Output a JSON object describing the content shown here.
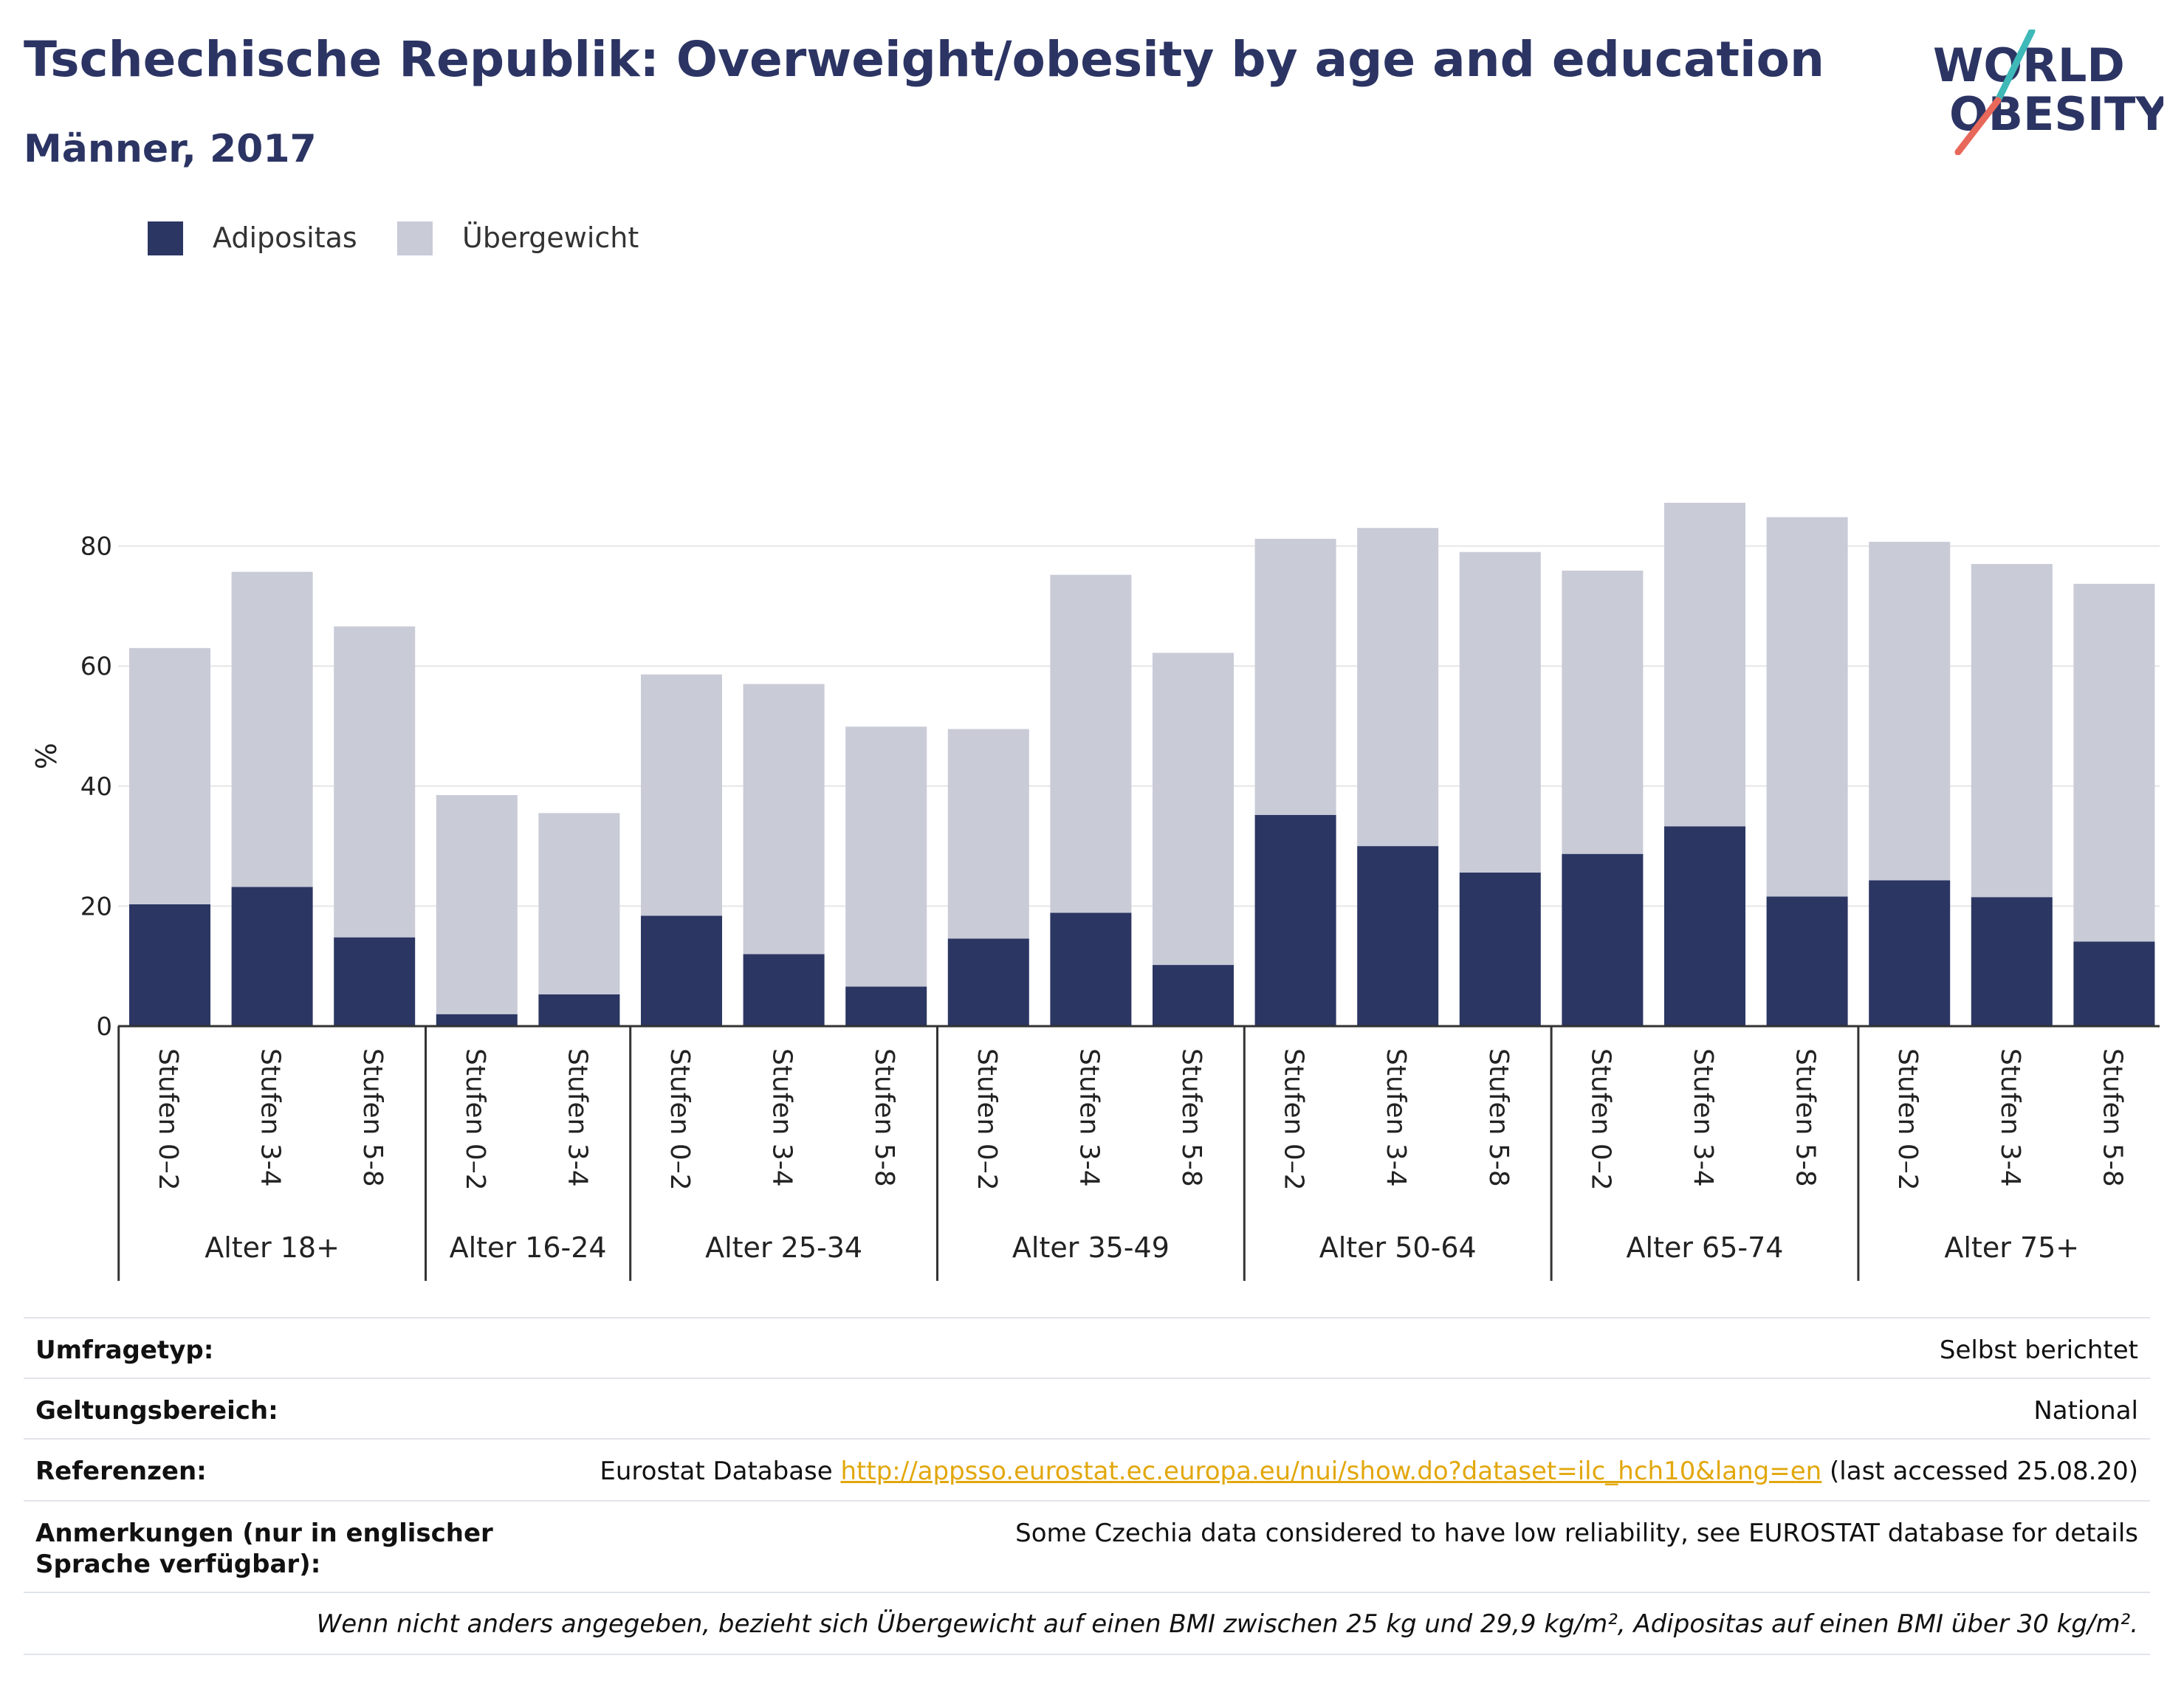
{
  "header": {
    "title": "Tschechische Republik: Overweight/obesity by age and education",
    "subtitle": "Männer, 2017"
  },
  "logo": {
    "line1": "WORLD",
    "line2": "OBESITY"
  },
  "colors": {
    "obese": "#2b3663",
    "overweight": "#c9cbd7",
    "title": "#2b3463",
    "link": "#e2a70c",
    "grid": "#e6e6e6"
  },
  "legend": {
    "obese_label": "Adipositas",
    "overweight_label": "Übergewicht"
  },
  "chart_data": {
    "type": "bar",
    "stacked": true,
    "ylabel": "%",
    "ylim": [
      0,
      90
    ],
    "yticks": [
      0,
      20,
      40,
      60,
      80
    ],
    "grid": true,
    "legend_position": "top-left",
    "groups": [
      {
        "label": "Alter 18+",
        "categories": [
          "Stufen 0–2",
          "Stufen 3-4",
          "Stufen 5-8"
        ]
      },
      {
        "label": "Alter 16-24",
        "categories": [
          "Stufen 0–2",
          "Stufen 3-4"
        ]
      },
      {
        "label": "Alter 25-34",
        "categories": [
          "Stufen 0–2",
          "Stufen 3-4",
          "Stufen 5-8"
        ]
      },
      {
        "label": "Alter 35-49",
        "categories": [
          "Stufen 0–2",
          "Stufen 3-4",
          "Stufen 5-8"
        ]
      },
      {
        "label": "Alter 50-64",
        "categories": [
          "Stufen 0–2",
          "Stufen 3-4",
          "Stufen 5-8"
        ]
      },
      {
        "label": "Alter 65-74",
        "categories": [
          "Stufen 0–2",
          "Stufen 3-4",
          "Stufen 5-8"
        ]
      },
      {
        "label": "Alter 75+",
        "categories": [
          "Stufen 0–2",
          "Stufen 3-4",
          "Stufen 5-8"
        ]
      }
    ],
    "series": [
      {
        "name": "Adipositas",
        "values": [
          20.3,
          23.2,
          14.8,
          2.0,
          5.3,
          18.4,
          12.0,
          6.6,
          14.6,
          18.9,
          10.2,
          35.2,
          30.0,
          25.6,
          28.7,
          33.3,
          21.6,
          24.3,
          21.5,
          14.1
        ]
      },
      {
        "name": "Übergewicht",
        "values": [
          42.7,
          52.5,
          51.8,
          36.5,
          30.2,
          40.2,
          45.0,
          43.3,
          34.9,
          56.3,
          52.0,
          46.0,
          53.0,
          53.4,
          47.2,
          53.9,
          63.2,
          56.4,
          55.5,
          59.6
        ]
      }
    ]
  },
  "meta": {
    "rows": [
      {
        "key": "Umfragetyp:",
        "value": "Selbst berichtet"
      },
      {
        "key": "Geltungsbereich:",
        "value": "National"
      },
      {
        "key": "Referenzen:",
        "prefix": "Eurostat Database ",
        "link": "http://appsso.eurostat.ec.europa.eu/nui/show.do?dataset=ilc_hch10&lang=en",
        "suffix": " (last accessed 25.08.20)"
      },
      {
        "key": "Anmerkungen (nur in englischer Sprache verfügbar):",
        "value": "Some Czechia data considered to have low reliability, see EUROSTAT database for details"
      }
    ],
    "footnote": "Wenn nicht anders angegeben, bezieht sich Übergewicht auf einen BMI zwischen 25 kg und 29,9 kg/m², Adipositas auf einen BMI über 30 kg/m²."
  }
}
